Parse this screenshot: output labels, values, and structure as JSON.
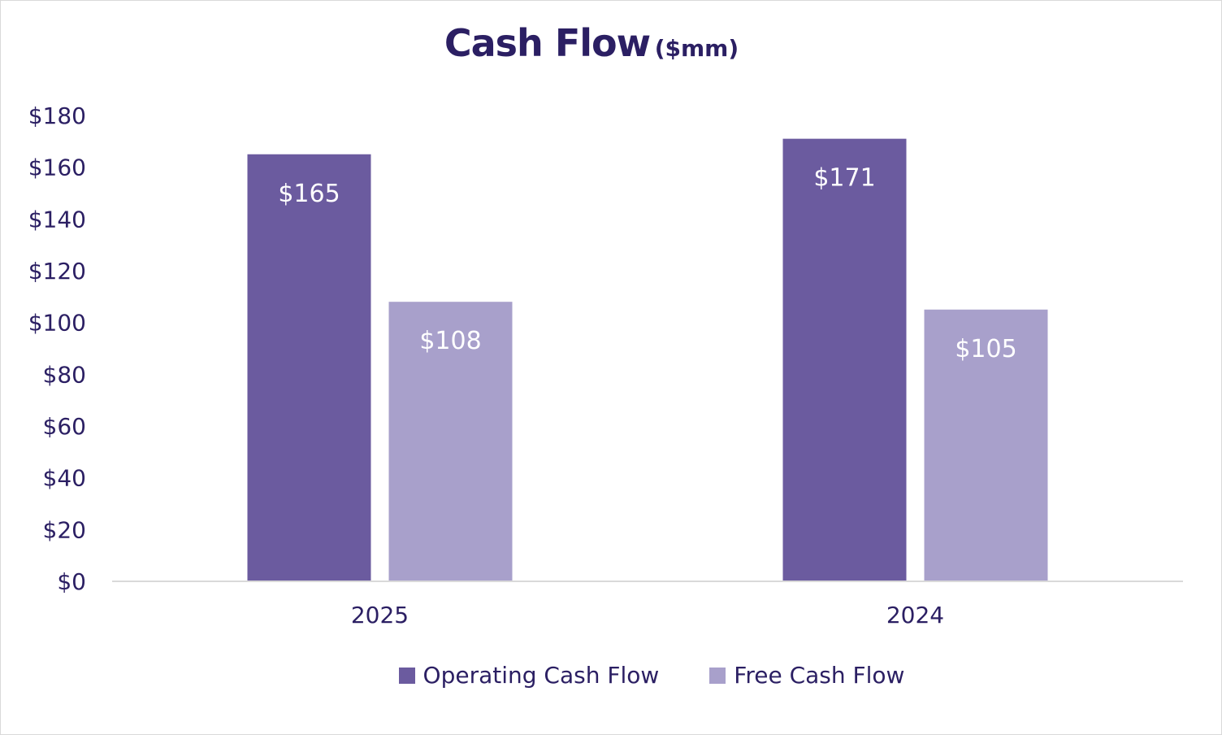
{
  "title": {
    "main": "Cash Flow",
    "sub": "($mm)"
  },
  "colors": {
    "operating": "#6b5b9f",
    "free": "#a8a0cb",
    "text": "#2b1f63",
    "axis": "#d9d9d9"
  },
  "chart_data": {
    "type": "bar",
    "title": "Cash Flow ($mm)",
    "categories": [
      "2025",
      "2024"
    ],
    "series": [
      {
        "name": "Operating Cash Flow",
        "values": [
          165,
          171
        ],
        "labels": [
          "$165",
          "$171"
        ]
      },
      {
        "name": "Free Cash Flow",
        "values": [
          108,
          105
        ],
        "labels": [
          "$108",
          "$105"
        ]
      }
    ],
    "ylim": [
      0,
      180
    ],
    "yticks": [
      0,
      20,
      40,
      60,
      80,
      100,
      120,
      140,
      160,
      180
    ],
    "ytick_labels": [
      "$0",
      "$20",
      "$40",
      "$60",
      "$80",
      "$100",
      "$120",
      "$140",
      "$160",
      "$180"
    ],
    "xlabel": "",
    "ylabel": "",
    "grid": false,
    "legend": "bottom"
  }
}
